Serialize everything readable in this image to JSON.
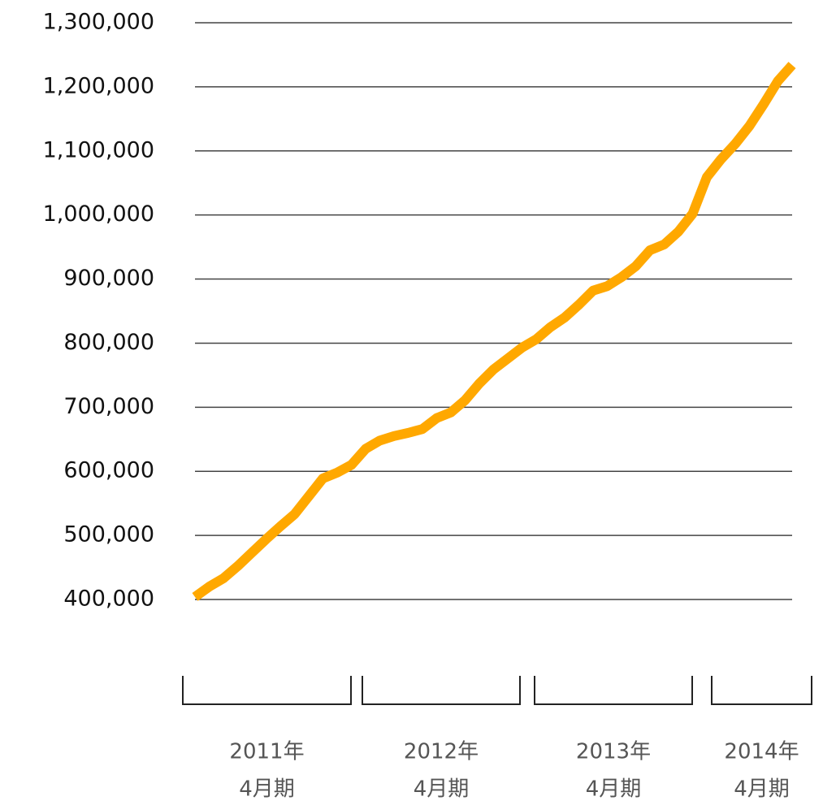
{
  "chart_data": {
    "type": "line",
    "categories": [
      null,
      null,
      null,
      null,
      null,
      null,
      null,
      null,
      null,
      null,
      null,
      null,
      null,
      null,
      null,
      null,
      null,
      null,
      null,
      null,
      null,
      null,
      null,
      null,
      null,
      null,
      null,
      null,
      null,
      null,
      null,
      null,
      null,
      null,
      null,
      null,
      null,
      null,
      null,
      null,
      null,
      null,
      null
    ],
    "series": [
      {
        "color": "#ffa800",
        "values": [
          404000,
          420000,
          433000,
          452000,
          473000,
          494000,
          514000,
          533000,
          561000,
          589000,
          598000,
          610000,
          635000,
          648000,
          655000,
          660000,
          666000,
          683000,
          692000,
          711000,
          737000,
          759000,
          776000,
          793000,
          806000,
          825000,
          840000,
          860000,
          882000,
          889000,
          903000,
          920000,
          945000,
          954000,
          974000,
          1002000,
          1059000,
          1087000,
          1111000,
          1139000,
          1173000,
          1209000,
          1234000
        ]
      }
    ],
    "ylim": [
      400000,
      1300000
    ],
    "yticks": [
      {
        "value": 400000,
        "label": "400,000"
      },
      {
        "value": 500000,
        "label": "500,000"
      },
      {
        "value": 600000,
        "label": "600,000"
      },
      {
        "value": 700000,
        "label": "700,000"
      },
      {
        "value": 800000,
        "label": "800,000"
      },
      {
        "value": 900000,
        "label": "900,000"
      },
      {
        "value": 1000000,
        "label": "1,000,000"
      },
      {
        "value": 1100000,
        "label": "1,100,000"
      },
      {
        "value": 1200000,
        "label": "1,200,000"
      },
      {
        "value": 1300000,
        "label": "1,300,000"
      }
    ],
    "grid": true,
    "groups": [
      [
        "2011年",
        "4月期"
      ],
      [
        "2012年",
        "4月期"
      ],
      [
        "2013年",
        "4月期"
      ],
      [
        "2014年",
        "4月期"
      ]
    ]
  }
}
